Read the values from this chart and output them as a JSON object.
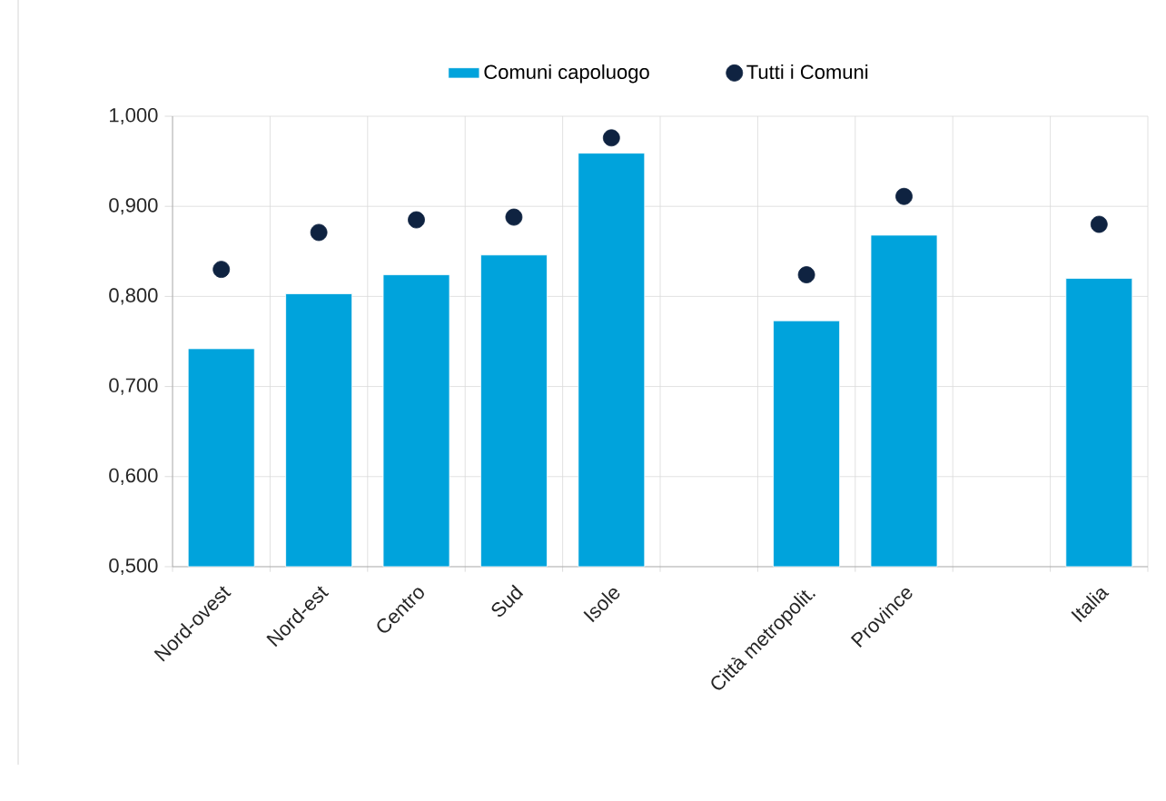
{
  "chart_data": {
    "type": "bar",
    "categories": [
      "Nord-ovest",
      "Nord-est",
      "Centro",
      "Sud",
      "Isole",
      null,
      "Città metropolit.",
      "Province",
      null,
      "Italia"
    ],
    "series": [
      {
        "name": "Comuni capoluogo",
        "color": "#00a3dc",
        "values": [
          0.742,
          0.803,
          0.824,
          0.846,
          0.959,
          null,
          0.773,
          0.868,
          null,
          0.82
        ]
      },
      {
        "name": "Tutti i Comuni",
        "type": "scatter",
        "color": "#0f2341",
        "values": [
          0.83,
          0.871,
          0.885,
          0.888,
          0.976,
          null,
          0.824,
          0.911,
          null,
          0.88
        ]
      }
    ],
    "ylim": [
      0.5,
      1.0
    ],
    "yticks": [
      {
        "value": 0.5,
        "label": "0,500"
      },
      {
        "value": 0.6,
        "label": "0,600"
      },
      {
        "value": 0.7,
        "label": "0,700"
      },
      {
        "value": 0.8,
        "label": "0,800"
      },
      {
        "value": 0.9,
        "label": "0,900"
      },
      {
        "value": 1.0,
        "label": "1,000"
      }
    ],
    "grid": true,
    "legend": "top"
  }
}
